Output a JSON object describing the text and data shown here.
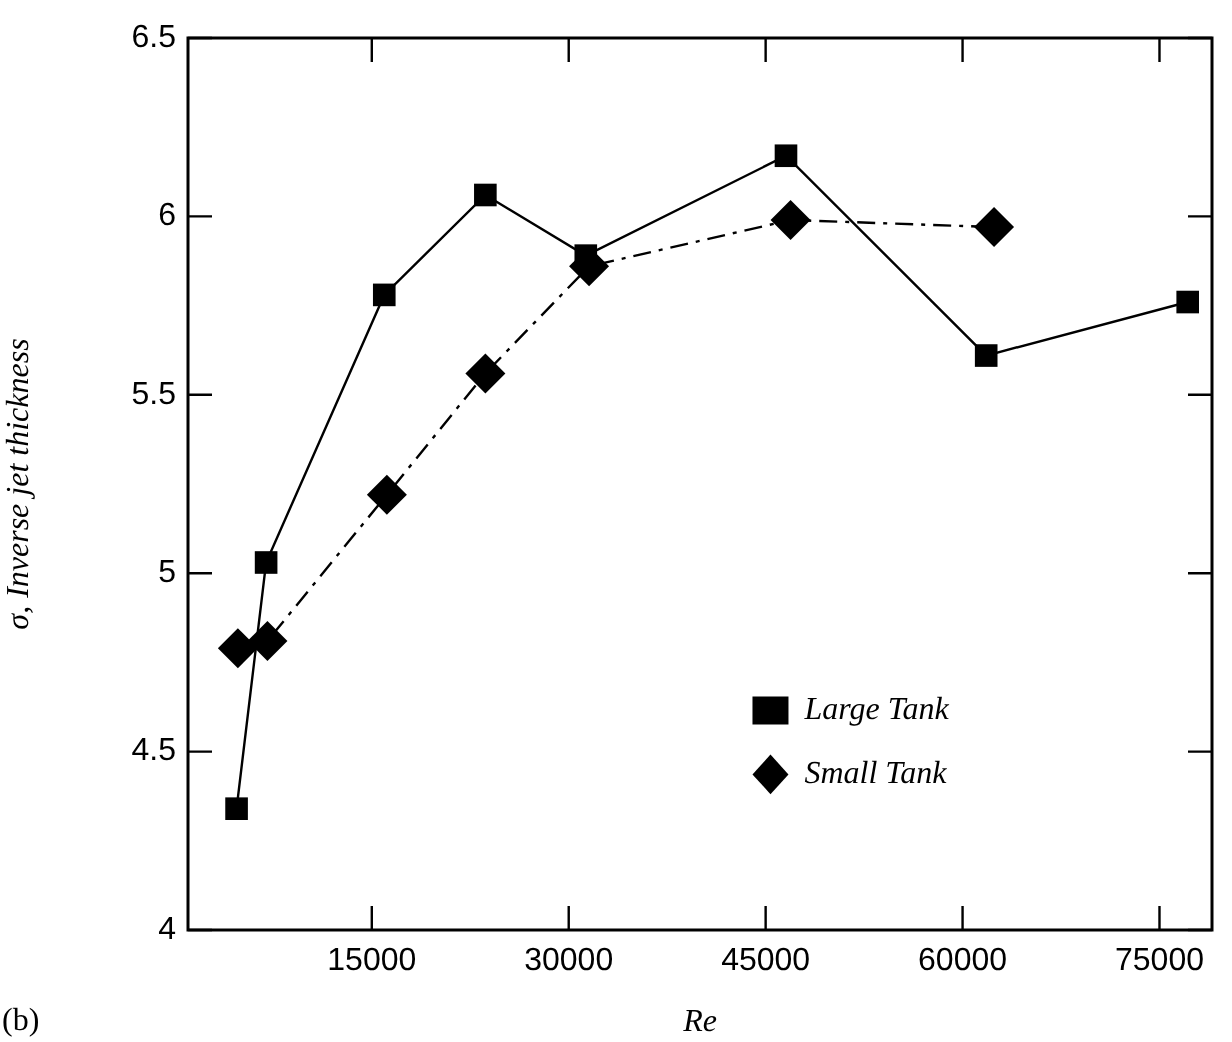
{
  "chart_data": {
    "type": "line",
    "xlabel": "Re",
    "ylabel": "σ, Inverse jet thickness",
    "annotations": [
      "(b)"
    ],
    "xlim": [
      1000,
      79000
    ],
    "xticks": [
      15000,
      30000,
      45000,
      60000,
      75000
    ],
    "ylim": [
      4,
      6.5
    ],
    "yticks": [
      4,
      4.5,
      5,
      5.5,
      6,
      6.5
    ],
    "grid": false,
    "legend": "right",
    "series": [
      {
        "name": "Large Tank",
        "color": "#000000",
        "marker": "square",
        "line_style": "solid",
        "x": [
          4700,
          6950,
          15950,
          23650,
          31300,
          46550,
          61800,
          77150
        ],
        "values": [
          4.34,
          5.03,
          5.78,
          6.06,
          5.89,
          6.17,
          5.61,
          5.76
        ]
      },
      {
        "name": "Small Tank",
        "color": "#000000",
        "marker": "diamond",
        "line_style": "dashed",
        "x": [
          4800,
          7050,
          16150,
          23650,
          31550,
          46900,
          62400
        ],
        "values": [
          4.79,
          4.81,
          5.22,
          5.56,
          5.86,
          5.99,
          5.97
        ]
      }
    ]
  }
}
